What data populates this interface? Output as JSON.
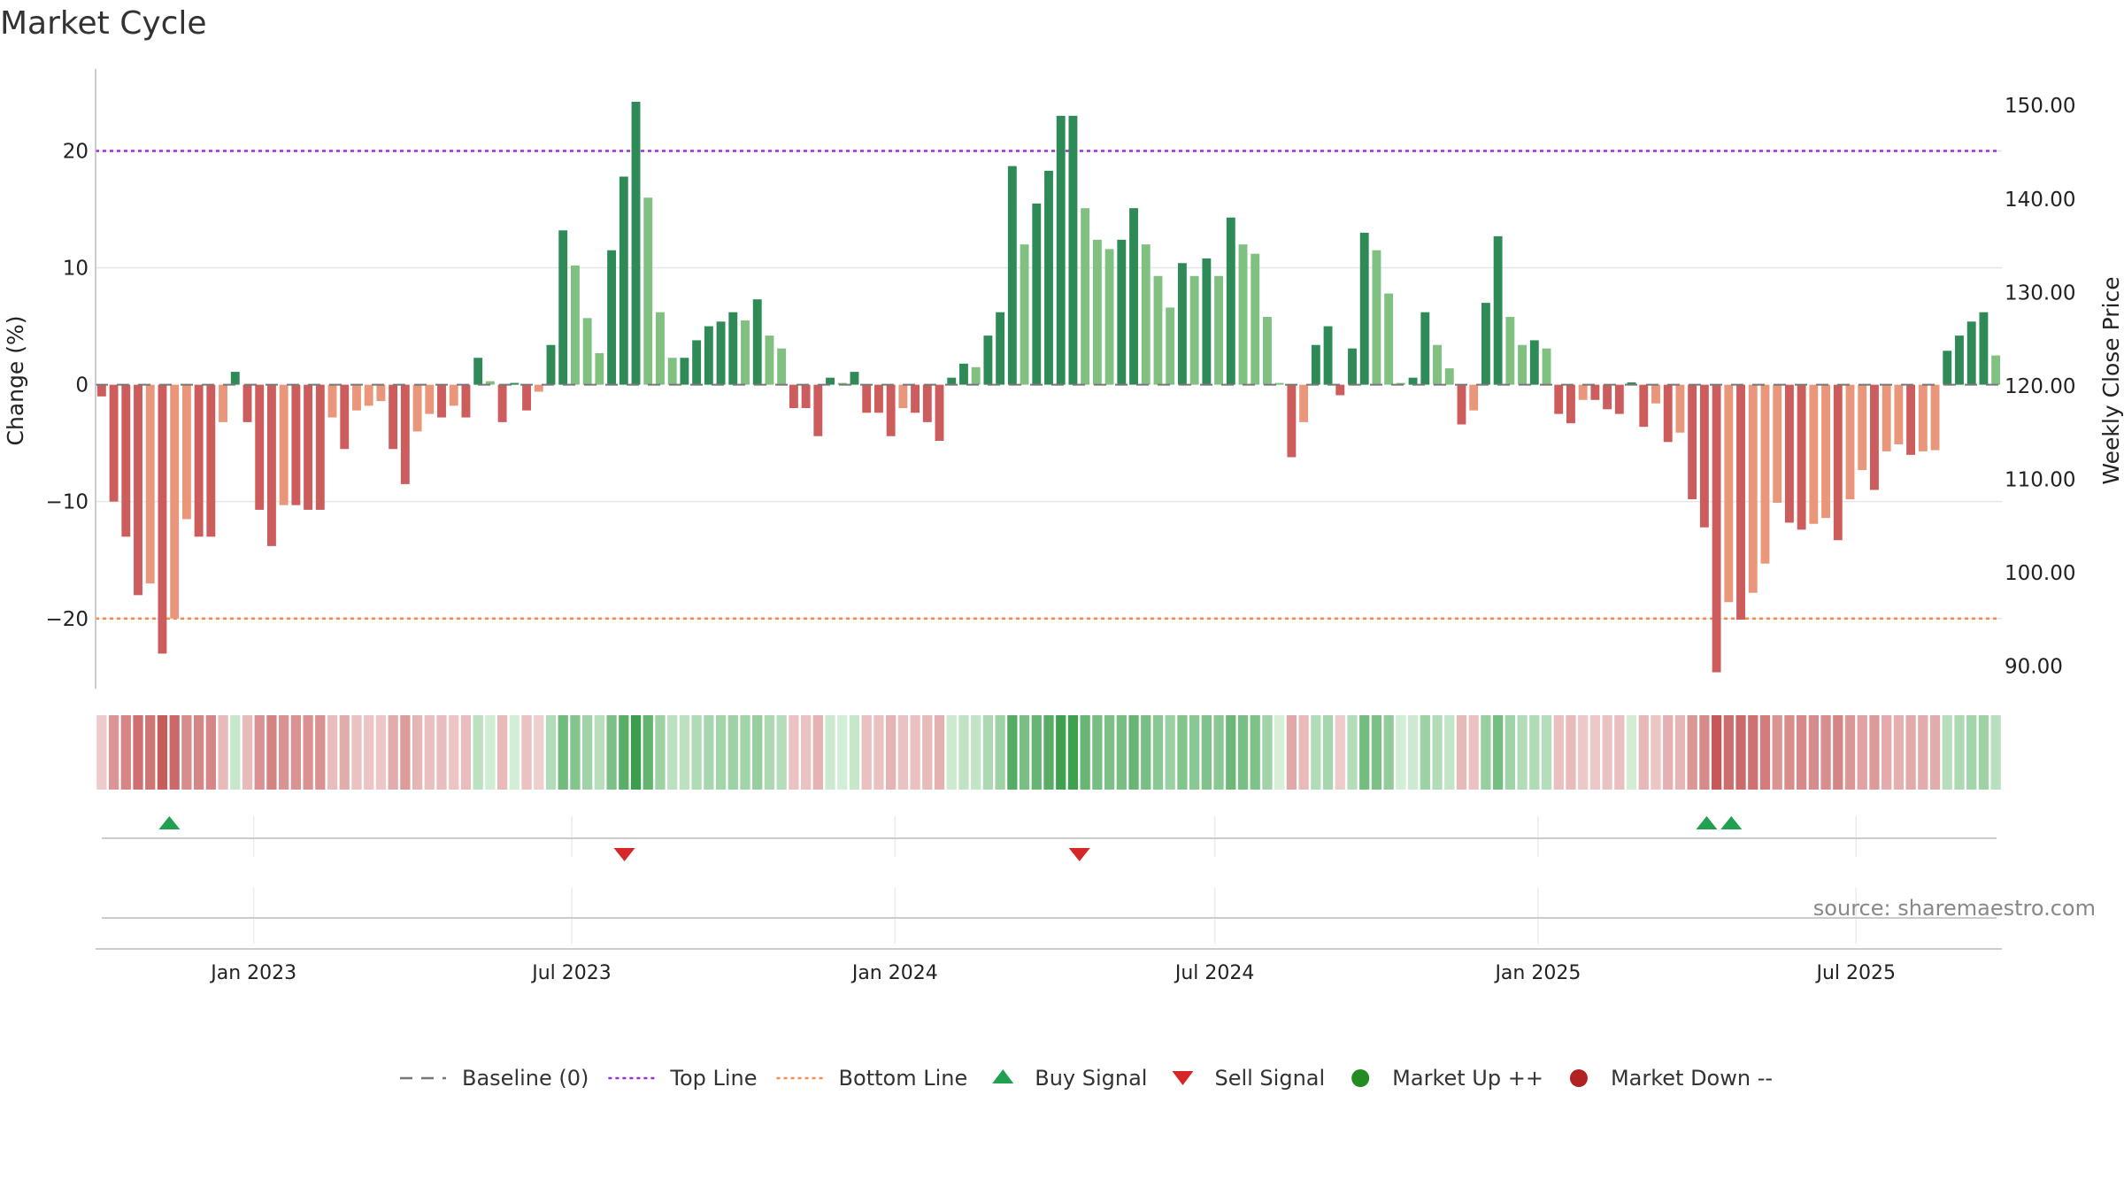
{
  "chart_data": {
    "type": "bar",
    "title": "Market Cycle",
    "ylabel": "Change (%)",
    "y2label": "Weekly Close Price",
    "ylim": [
      -26,
      27
    ],
    "y_ticks": [
      -20,
      -10,
      0,
      10,
      20
    ],
    "y_tick_labels": [
      "−20",
      "−10",
      "0",
      "10",
      "20"
    ],
    "y2_ticks": [
      90,
      100,
      110,
      120,
      130,
      140,
      150
    ],
    "y2_tick_labels": [
      "90.00",
      "100.00",
      "110.00",
      "120.00",
      "130.00",
      "140.00",
      "150.00"
    ],
    "y2lim": [
      87.6,
      153.9
    ],
    "top_line": 20,
    "bottom_line": -20,
    "grid": true,
    "legend_position": "bottom-center",
    "source": "source: sharemaestro.com",
    "x_start": "2022-10-03",
    "x_end": "2025-09-22",
    "x_ticks": [
      {
        "date": "2023-01-01",
        "label": "Jan 2023"
      },
      {
        "date": "2023-07-01",
        "label": "Jul 2023"
      },
      {
        "date": "2024-01-01",
        "label": "Jan 2024"
      },
      {
        "date": "2024-07-01",
        "label": "Jul 2024"
      },
      {
        "date": "2025-01-01",
        "label": "Jan 2025"
      },
      {
        "date": "2025-07-01",
        "label": "Jul 2025"
      }
    ],
    "values": [
      -1,
      -10,
      -13,
      -18,
      -17,
      -23,
      -20,
      -11.5,
      -13,
      -13,
      -3.2,
      1.1,
      -3.2,
      -10.7,
      -13.8,
      -10.3,
      -10.3,
      -10.7,
      -10.7,
      -2.8,
      -5.5,
      -2.2,
      -1.8,
      -1.4,
      -5.5,
      -8.5,
      -4,
      -2.5,
      -2.8,
      -1.8,
      -2.8,
      2.3,
      0.3,
      -3.2,
      0.1,
      -2.2,
      -0.6,
      3.4,
      13.2,
      10.2,
      5.7,
      2.7,
      11.5,
      17.8,
      24.2,
      16,
      6.2,
      2.3,
      2.3,
      3.8,
      5,
      5.4,
      6.2,
      5.5,
      7.3,
      4.2,
      3.1,
      -2,
      -2,
      -4.4,
      0.6,
      0.1,
      1.1,
      -2.4,
      -2.4,
      -4.4,
      -2,
      -2.4,
      -3.2,
      -4.8,
      0.6,
      1.8,
      1.5,
      4.2,
      6.2,
      18.7,
      12,
      15.5,
      18.3,
      23,
      23,
      15.1,
      12.4,
      11.6,
      12.4,
      15.1,
      12,
      9.3,
      6.6,
      10.4,
      9.3,
      10.8,
      9.3,
      14.3,
      12,
      11.2,
      5.8,
      0,
      -6.2,
      -3.2,
      3.4,
      5,
      -0.9,
      3.1,
      13,
      11.5,
      7.8,
      0.1,
      0.6,
      6.2,
      3.4,
      1.4,
      -3.4,
      -2.2,
      7,
      12.7,
      5.8,
      3.4,
      3.8,
      3.1,
      -2.5,
      -3.3,
      -1.3,
      -1.3,
      -2.1,
      -2.5,
      0.2,
      -3.6,
      -1.6,
      -4.9,
      -4.1,
      -9.8,
      -12.2,
      -24.6,
      -18.6,
      -20.1,
      -17.8,
      -15.3,
      -10.1,
      -11.8,
      -12.4,
      -11.9,
      -11.4,
      -13.3,
      -9.8,
      -7.3,
      -9,
      -5.7,
      -5.1,
      -6,
      -5.7,
      -5.6,
      2.9,
      4.2,
      5.4,
      6.2,
      2.5
    ],
    "signals": [
      {
        "date": "2022-11-14",
        "type": "buy"
      },
      {
        "date": "2023-07-31",
        "type": "sell"
      },
      {
        "date": "2024-04-15",
        "type": "sell"
      },
      {
        "date": "2025-04-07",
        "type": "buy"
      },
      {
        "date": "2025-04-21",
        "type": "buy"
      }
    ],
    "colors": {
      "up_strong": "#2e8b57",
      "up_weak": "#80c080",
      "down_strong": "#cd5c5c",
      "down_weak": "#e9967a",
      "top_line": "#9b30d0",
      "bottom_line": "#f28c50",
      "buy": "#20a050",
      "sell": "#d62728",
      "market_up": "#228b22",
      "market_down": "#b22222"
    },
    "legend": [
      {
        "label": "Baseline (0)",
        "kind": "dash",
        "color": "#777777"
      },
      {
        "label": "Top Line",
        "kind": "dot",
        "color": "#9b30d0"
      },
      {
        "label": "Bottom Line",
        "kind": "dot",
        "color": "#f28c50"
      },
      {
        "label": "Buy Signal",
        "kind": "tri-up",
        "color": "#20a050"
      },
      {
        "label": "Sell Signal",
        "kind": "tri-down",
        "color": "#d62728"
      },
      {
        "label": "Market Up ++",
        "kind": "circle",
        "color": "#228b22"
      },
      {
        "label": "Market Down --",
        "kind": "circle",
        "color": "#b22222"
      }
    ]
  }
}
